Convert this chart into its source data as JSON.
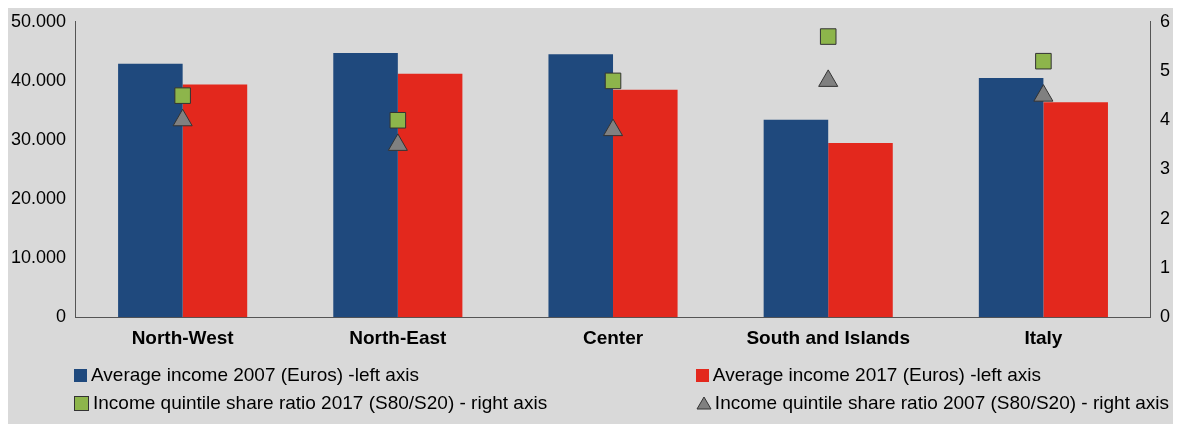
{
  "chart_data": {
    "type": "bar",
    "categories": [
      "North-West",
      "North-East",
      "Center",
      "South and Islands",
      "Italy"
    ],
    "series": [
      {
        "name": "Average income 2007 (Euros) -left axis",
        "color": "#1f497d",
        "values": [
          42900,
          44700,
          44500,
          33400,
          40500
        ]
      },
      {
        "name": "Average income 2017 (Euros) -left axis",
        "color": "#e3281d",
        "values": [
          39400,
          41200,
          38500,
          29500,
          36400
        ]
      },
      {
        "name": "Income quintile share ratio 2017 (S80/S20) - right axis",
        "type": "scatter",
        "marker": "square",
        "axis": "y2",
        "color": "#8db54b",
        "x": [
          "North-West",
          "North-East",
          "Center",
          "South and Islands",
          "Italy"
        ],
        "values": [
          4.5,
          4.0,
          4.8,
          5.7,
          5.2
        ]
      },
      {
        "name": "Income quintile share ratio 2007 (S80/S20) - right axis",
        "type": "scatter",
        "marker": "triangle",
        "axis": "y2",
        "color": "#808080",
        "x": [
          "North-West",
          "North-East",
          "Center",
          "South and Islands",
          "Italy"
        ],
        "values": [
          4.0,
          3.5,
          3.8,
          4.8,
          4.5
        ]
      }
    ],
    "ylim": [
      0,
      50000
    ],
    "yticks": [
      {
        "value": 0,
        "label": "0"
      },
      {
        "value": 10000,
        "label": "10.000"
      },
      {
        "value": 20000,
        "label": "20.000"
      },
      {
        "value": 30000,
        "label": "30.000"
      },
      {
        "value": 40000,
        "label": "40.000"
      },
      {
        "value": 50000,
        "label": "50.000"
      }
    ],
    "y2lim": [
      0,
      6
    ],
    "y2ticks": [
      0,
      1,
      2,
      3,
      4,
      5,
      6
    ],
    "grid": false,
    "legend": "bottom"
  }
}
